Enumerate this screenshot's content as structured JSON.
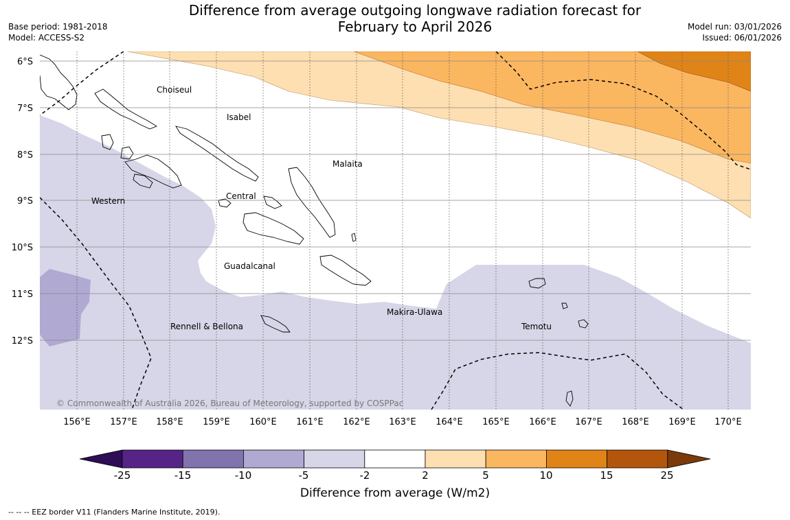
{
  "title": "Difference from average outgoing longwave radiation forecast for\nFebruary to April 2026",
  "base_period": "Base period: 1981-2018",
  "model": "Model: ACCESS-S2",
  "model_run": "Model run: 03/01/2026",
  "issued": "Issued: 06/01/2026",
  "copyright": "© Commonwealth of Australia 2026, Bureau of Meteorology, supported by COSPPac",
  "lat_labels": [
    "6°S",
    "7°S",
    "8°S",
    "9°S",
    "10°S",
    "11°S",
    "12°S"
  ],
  "lon_labels": [
    "156°E",
    "157°E",
    "158°E",
    "159°E",
    "160°E",
    "161°E",
    "162°E",
    "163°E",
    "164°E",
    "165°E",
    "166°E",
    "167°E",
    "168°E",
    "169°E",
    "170°E"
  ],
  "regions": [
    "Choiseul",
    "Isabel",
    "Malaita",
    "Western",
    "Central",
    "Guadalcanal",
    "Makira-Ulawa",
    "Rennell & Bellona",
    "Temotu"
  ],
  "colorbar": {
    "ticks": [
      "-25",
      "-15",
      "-10",
      "-5",
      "-2",
      "2",
      "5",
      "10",
      "15",
      "25"
    ],
    "colors": [
      "#2f0d56",
      "#562487",
      "#8073ae",
      "#b0a9d2",
      "#d6d6e8",
      "#ffffff",
      "#fedfb1",
      "#fbb660",
      "#e08417",
      "#b3560d",
      "#7b3a0a"
    ],
    "label": "Difference from average (W/m2)"
  },
  "footnote": "--  --  -- EEZ border V11 (Flanders Marine Institute, 2019)."
}
